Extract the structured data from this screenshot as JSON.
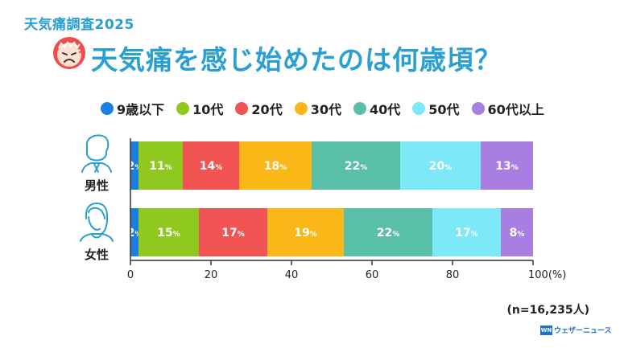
{
  "header": {
    "survey_tag": "天気痛調査2025",
    "title": "天気痛を感じ始めたのは何歳頃？"
  },
  "footnote": "(n=16,235人)",
  "logo": {
    "mark": "WN",
    "text": "ウェザーニュース"
  },
  "colors": [
    "#1a7fe0",
    "#8fc91f",
    "#f25454",
    "#fbb617",
    "#59bfa8",
    "#7de8f7",
    "#a97ee3"
  ],
  "chart_data": {
    "type": "bar",
    "orientation": "horizontal",
    "stacked": true,
    "categories": [
      "男性",
      "女性"
    ],
    "series": [
      {
        "name": "9歳以下",
        "values": [
          2,
          2
        ]
      },
      {
        "name": "10代",
        "values": [
          11,
          15
        ]
      },
      {
        "name": "20代",
        "values": [
          14,
          17
        ]
      },
      {
        "name": "30代",
        "values": [
          18,
          19
        ]
      },
      {
        "name": "40代",
        "values": [
          22,
          22
        ]
      },
      {
        "name": "50代",
        "values": [
          20,
          17
        ]
      },
      {
        "name": "60代以上",
        "values": [
          13,
          8
        ]
      }
    ],
    "xlim": [
      0,
      100
    ],
    "xticks": [
      "0",
      "20",
      "40",
      "60",
      "80",
      "100(%)"
    ],
    "value_suffix": "%",
    "legend_position": "top",
    "grid": false
  }
}
